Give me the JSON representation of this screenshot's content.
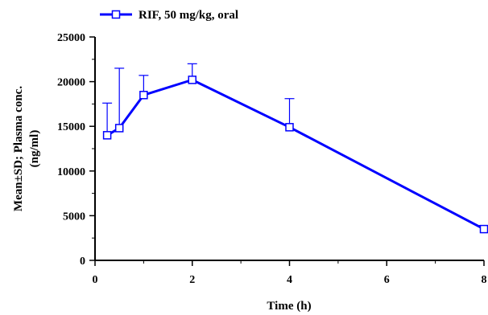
{
  "chart_data": {
    "type": "line",
    "xlabel": "Time (h)",
    "ylabel_lines": [
      "Mean±SD; Plasma conc.",
      "(ng/ml)"
    ],
    "xlim": [
      0,
      8
    ],
    "ylim": [
      0,
      25000
    ],
    "xticks": [
      0,
      2,
      4,
      6,
      8
    ],
    "xtick_labels": [
      "0",
      "2",
      "4",
      "6",
      "8"
    ],
    "yticks": [
      0,
      5000,
      10000,
      15000,
      20000,
      25000
    ],
    "ytick_labels": [
      "0",
      "5000",
      "10000",
      "15000",
      "20000",
      "25000"
    ],
    "grid": false,
    "legend_position": "top-left",
    "series": [
      {
        "name": "RIF, 50 mg/kg, oral",
        "color": "#0000ff",
        "marker": "open-square",
        "x": [
          0.25,
          0.5,
          1,
          2,
          4,
          8
        ],
        "y": [
          14000,
          14800,
          18500,
          20200,
          14900,
          3500
        ],
        "sd_upper": [
          17600,
          21500,
          20700,
          22000,
          18100,
          3900
        ]
      }
    ]
  }
}
